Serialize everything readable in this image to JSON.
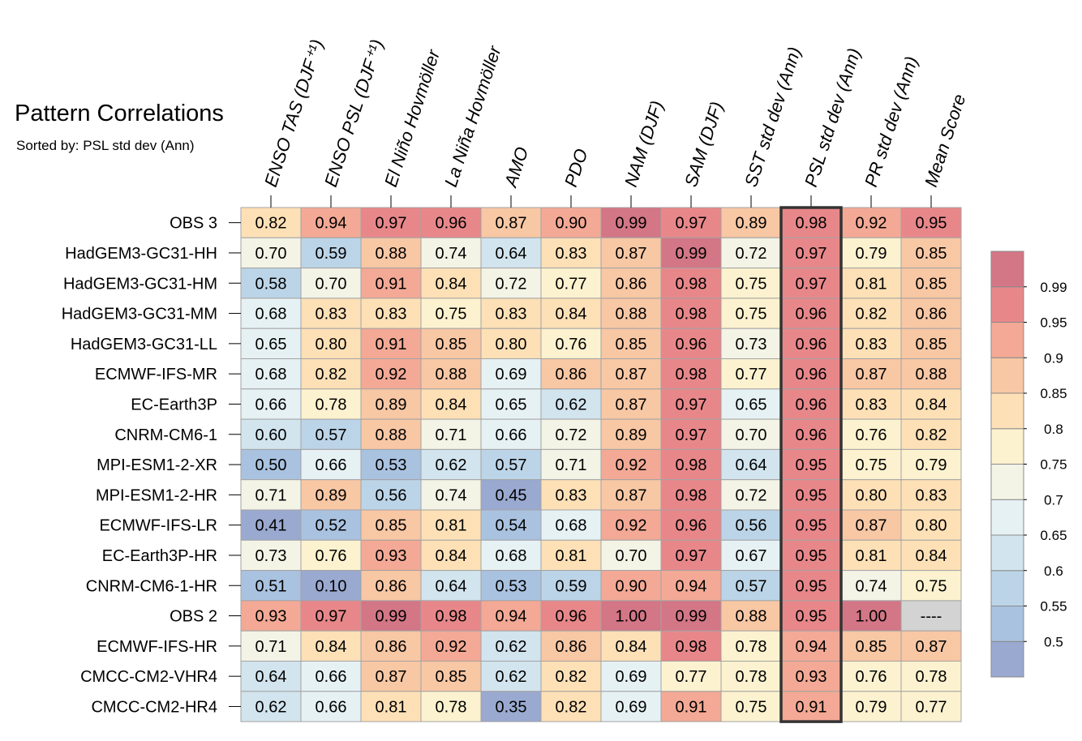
{
  "title": "Pattern Correlations",
  "subtitle": "Sorted by: PSL std dev (Ann)",
  "chart_data": {
    "type": "heatmap",
    "columns": [
      "ENSO TAS (DJF⁺¹)",
      "ENSO PSL (DJF⁺¹)",
      "El Niño Hovmöller",
      "La Niña Hovmöller",
      "AMO",
      "PDO",
      "NAM (DJF)",
      "SAM (DJF)",
      "SST std dev (Ann)",
      "PSL std dev (Ann)",
      "PR std dev (Ann)",
      "Mean Score"
    ],
    "rows": [
      "OBS 3",
      "HadGEM3-GC31-HH",
      "HadGEM3-GC31-HM",
      "HadGEM3-GC31-MM",
      "HadGEM3-GC31-LL",
      "ECMWF-IFS-MR",
      "EC-Earth3P",
      "CNRM-CM6-1",
      "MPI-ESM1-2-XR",
      "MPI-ESM1-2-HR",
      "ECMWF-IFS-LR",
      "EC-Earth3P-HR",
      "CNRM-CM6-1-HR",
      "OBS 2",
      "ECMWF-IFS-HR",
      "CMCC-CM2-VHR4",
      "CMCC-CM2-HR4"
    ],
    "values": [
      [
        0.82,
        0.94,
        0.97,
        0.96,
        0.87,
        0.9,
        0.99,
        0.97,
        0.89,
        0.98,
        0.92,
        0.95
      ],
      [
        0.7,
        0.59,
        0.88,
        0.74,
        0.64,
        0.83,
        0.87,
        0.99,
        0.72,
        0.97,
        0.79,
        0.85
      ],
      [
        0.58,
        0.7,
        0.91,
        0.84,
        0.72,
        0.77,
        0.86,
        0.98,
        0.75,
        0.97,
        0.81,
        0.85
      ],
      [
        0.68,
        0.83,
        0.83,
        0.75,
        0.83,
        0.84,
        0.88,
        0.98,
        0.75,
        0.96,
        0.82,
        0.86
      ],
      [
        0.65,
        0.8,
        0.91,
        0.85,
        0.8,
        0.76,
        0.85,
        0.96,
        0.73,
        0.96,
        0.83,
        0.85
      ],
      [
        0.68,
        0.82,
        0.92,
        0.88,
        0.69,
        0.86,
        0.87,
        0.98,
        0.77,
        0.96,
        0.87,
        0.88
      ],
      [
        0.66,
        0.78,
        0.89,
        0.84,
        0.65,
        0.62,
        0.87,
        0.97,
        0.65,
        0.96,
        0.83,
        0.84
      ],
      [
        0.6,
        0.57,
        0.88,
        0.71,
        0.66,
        0.72,
        0.89,
        0.97,
        0.7,
        0.96,
        0.76,
        0.82
      ],
      [
        0.5,
        0.66,
        0.53,
        0.62,
        0.57,
        0.71,
        0.92,
        0.98,
        0.64,
        0.95,
        0.75,
        0.79
      ],
      [
        0.71,
        0.89,
        0.56,
        0.74,
        0.45,
        0.83,
        0.87,
        0.98,
        0.72,
        0.95,
        0.8,
        0.83
      ],
      [
        0.41,
        0.52,
        0.85,
        0.81,
        0.54,
        0.68,
        0.92,
        0.96,
        0.56,
        0.95,
        0.87,
        0.8
      ],
      [
        0.73,
        0.76,
        0.93,
        0.84,
        0.68,
        0.81,
        0.7,
        0.97,
        0.67,
        0.95,
        0.81,
        0.84
      ],
      [
        0.51,
        0.1,
        0.86,
        0.64,
        0.53,
        0.59,
        0.9,
        0.94,
        0.57,
        0.95,
        0.74,
        0.75
      ],
      [
        0.93,
        0.97,
        0.99,
        0.98,
        0.94,
        0.96,
        1.0,
        0.99,
        0.88,
        0.95,
        1.0,
        null
      ],
      [
        0.71,
        0.84,
        0.86,
        0.92,
        0.62,
        0.86,
        0.84,
        0.98,
        0.78,
        0.94,
        0.85,
        0.87
      ],
      [
        0.64,
        0.66,
        0.87,
        0.85,
        0.62,
        0.82,
        0.69,
        0.77,
        0.78,
        0.93,
        0.76,
        0.78
      ],
      [
        0.62,
        0.66,
        0.81,
        0.78,
        0.35,
        0.82,
        0.69,
        0.91,
        0.75,
        0.91,
        0.79,
        0.77
      ]
    ],
    "missing_label": "----",
    "highlighted_column": "PSL std dev (Ann)",
    "colorbar": {
      "ticks": [
        "0.5",
        "0.55",
        "0.6",
        "0.65",
        "0.7",
        "0.75",
        "0.8",
        "0.85",
        "0.9",
        "0.95",
        "0.99"
      ],
      "levels": [
        0.5,
        0.55,
        0.6,
        0.65,
        0.7,
        0.75,
        0.8,
        0.85,
        0.9,
        0.95,
        0.99
      ],
      "colors": [
        "#9aa9d0",
        "#a9c2e0",
        "#bcd4e7",
        "#d2e4ee",
        "#e6f1f4",
        "#f3f3e6",
        "#fcf2cf",
        "#fde0b6",
        "#f8c7a4",
        "#f3a995",
        "#e8878a",
        "#d37686"
      ],
      "missing_color": "#d3d3d3"
    }
  }
}
